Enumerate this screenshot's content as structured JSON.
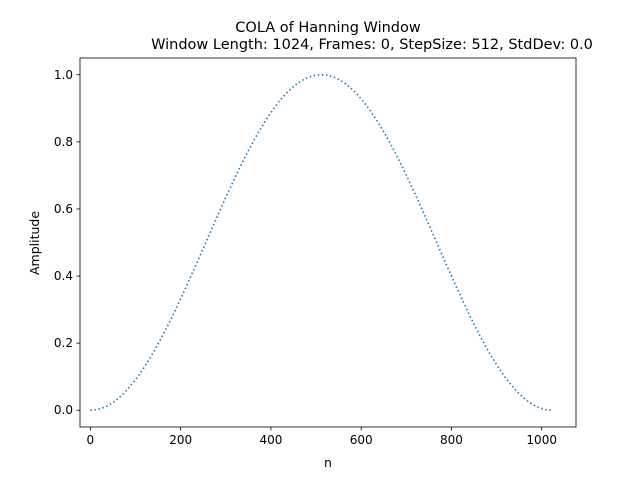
{
  "chart_data": {
    "type": "line",
    "title": "COLA of Hanning Window",
    "subtitle": "Window Length: 1024, Frames: 0, StepSize: 512, StdDev: 0.0",
    "xlabel": "n",
    "ylabel": "Amplitude",
    "xlim": [
      -23,
      1076
    ],
    "ylim": [
      -0.05,
      1.05
    ],
    "xticks": [
      0,
      200,
      400,
      600,
      800,
      1000
    ],
    "yticks": [
      0.0,
      0.2,
      0.4,
      0.6,
      0.8,
      1.0
    ],
    "xtick_labels": [
      "0",
      "200",
      "400",
      "600",
      "800",
      "1000"
    ],
    "ytick_labels": [
      "0.0",
      "0.2",
      "0.4",
      "0.6",
      "0.8",
      "1.0"
    ],
    "grid": false,
    "series": [
      {
        "line_style": "dotted",
        "color": "#1f77b4",
        "window": "hanning",
        "x_start": 0,
        "x_end": 1023,
        "formula": "0.5 - 0.5*cos(2*pi*n/1023)"
      }
    ]
  }
}
